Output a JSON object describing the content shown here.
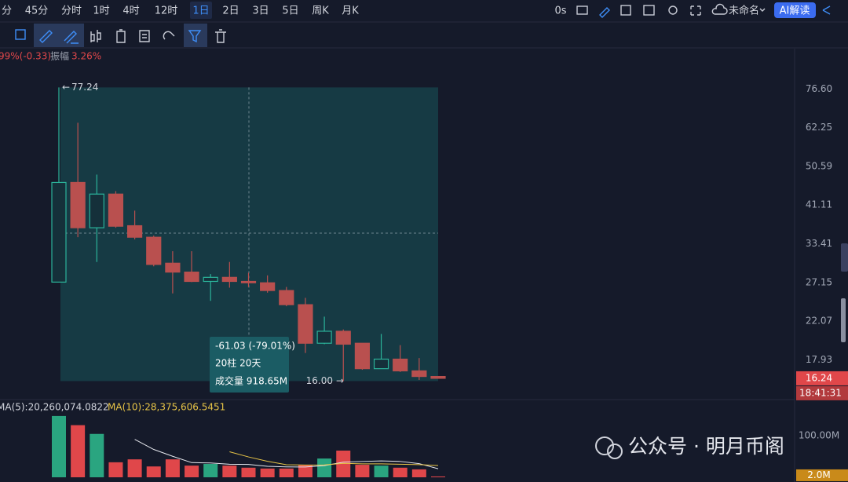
{
  "toolbar": {
    "timeframes": [
      "分",
      "45分",
      "分时",
      "1时",
      "4时",
      "12时",
      "1日",
      "2日",
      "3日",
      "5日",
      "周K",
      "月K"
    ],
    "active": 6,
    "timer": "0s",
    "layout_name": "未命名",
    "ai": "AI解读"
  },
  "info": {
    "change": "99%(-0.33)",
    "amplitude_label": "振幅",
    "amplitude": "3.26%"
  },
  "indicator": {
    "ma5": "MA(5):20,260,074.0822",
    "ma10": "MA(10):28,375,606.5451"
  },
  "watermark": "公众号 · 明月币阁",
  "chart_data": {
    "type": "candlestick",
    "log": true,
    "ylim": [
      15.5,
      80
    ],
    "yticks": [
      {
        "value": 76.6,
        "label": "76.60"
      },
      62.25,
      50.59,
      41.11,
      33.41,
      27.15,
      22.07,
      17.93
    ],
    "open": [
      27.2,
      46.4,
      36.4,
      43.6,
      36.8,
      34.6,
      30.1,
      28.7,
      27.3,
      27.9,
      27.3,
      27.1,
      26.0,
      24.1,
      19.6,
      20.9,
      19.6,
      17.1,
      18.0,
      16.9,
      16.4
    ],
    "high": [
      77.24,
      63.9,
      48.4,
      44.3,
      39.9,
      34.9,
      32.1,
      32.1,
      28.4,
      30.3,
      28.6,
      28.2,
      26.5,
      25.0,
      22.6,
      21.1,
      19.6,
      20.6,
      19.4,
      18.1,
      16.4
    ],
    "low": [
      27.2,
      34.6,
      30.3,
      36.4,
      34.2,
      29.6,
      25.6,
      27.2,
      24.6,
      26.4,
      26.5,
      25.7,
      23.9,
      18.6,
      19.5,
      16.0,
      17.0,
      17.1,
      16.8,
      16.1,
      16.2
    ],
    "close": [
      46.4,
      36.4,
      43.6,
      36.7,
      34.6,
      29.9,
      28.7,
      27.3,
      27.9,
      27.3,
      27.1,
      26.0,
      24.1,
      19.6,
      20.9,
      19.5,
      17.1,
      18.0,
      16.9,
      16.4,
      16.24
    ],
    "up_color": "#2bb39a",
    "down_color": "#b9504f",
    "last_price": 16.24,
    "last_time": "18:41:31",
    "measure": {
      "high": 77.24,
      "low": {
        "value": 16,
        "label": "16.00"
      },
      "change": "-61.03 (-79.01%)",
      "bars": "20柱 20天",
      "volume": "成交量 918.65M"
    },
    "volume": [
      147,
      125,
      104,
      36,
      43,
      26,
      43,
      28,
      32,
      28,
      23,
      21,
      21,
      30,
      45,
      64,
      30,
      28,
      23,
      19,
      2
    ],
    "vlim": [
      0,
      160
    ],
    "vticks": [
      {
        "value": 100,
        "label": "100.00M"
      }
    ],
    "last_volume": {
      "value": 2,
      "label": "2.0M"
    },
    "volume_up_color": "#2aa580",
    "volume_down_color": "#e0474a"
  }
}
